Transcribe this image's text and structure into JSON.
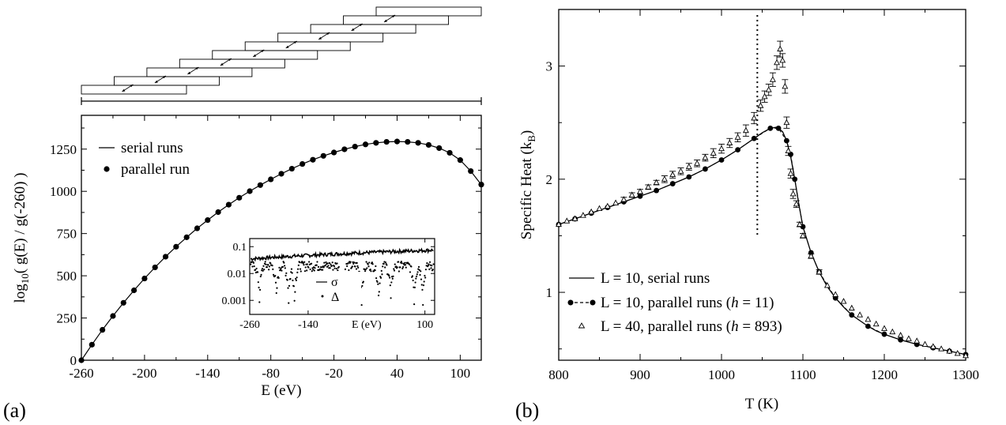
{
  "chart_data": [
    {
      "panel_label": "(a)",
      "type": "line",
      "xlabel": "E (eV)",
      "ylabel": "log10( g(E) / g(-260) )",
      "ylabel_parts": {
        "pre": "log",
        "sub": "10",
        "post": "( g(E) / g(-260) )"
      },
      "xlim": [
        -260,
        120
      ],
      "ylim": [
        0,
        1450
      ],
      "xticks": [
        -260,
        -200,
        -140,
        -80,
        -20,
        40,
        100
      ],
      "xtick_labels": [
        "-260",
        "-200",
        "-140",
        "-80",
        "-20",
        "40",
        "100"
      ],
      "yticks": [
        0,
        250,
        500,
        750,
        1000,
        1250
      ],
      "ytick_labels": [
        "0",
        "250",
        "500",
        "750",
        "1000",
        "1250"
      ],
      "legend_position": "top-left",
      "series": [
        {
          "name": "serial runs",
          "style": "solid line",
          "x": [
            -260,
            -250,
            -240,
            -230,
            -220,
            -210,
            -200,
            -190,
            -180,
            -170,
            -160,
            -150,
            -140,
            -130,
            -120,
            -110,
            -100,
            -90,
            -80,
            -70,
            -60,
            -50,
            -40,
            -30,
            -20,
            -10,
            0,
            10,
            20,
            30,
            40,
            50,
            60,
            70,
            80,
            90,
            100,
            110,
            120
          ],
          "y": [
            0,
            92,
            180,
            262,
            340,
            414,
            484,
            550,
            613,
            672,
            728,
            781,
            830,
            877,
            921,
            962,
            1001,
            1037,
            1071,
            1104,
            1134,
            1162,
            1187,
            1210,
            1230,
            1249,
            1265,
            1278,
            1287,
            1293,
            1295,
            1293,
            1287,
            1275,
            1256,
            1228,
            1185,
            1120,
            1040
          ]
        },
        {
          "name": "parallel run",
          "style": "filled circles",
          "x": [
            -260,
            -250,
            -240,
            -230,
            -220,
            -210,
            -200,
            -190,
            -180,
            -170,
            -160,
            -150,
            -140,
            -130,
            -120,
            -110,
            -100,
            -90,
            -80,
            -70,
            -60,
            -50,
            -40,
            -30,
            -20,
            -10,
            0,
            10,
            20,
            30,
            40,
            50,
            60,
            70,
            80,
            90,
            100,
            110,
            120
          ],
          "y": [
            0,
            92,
            180,
            262,
            340,
            414,
            484,
            550,
            613,
            672,
            728,
            781,
            830,
            877,
            921,
            962,
            1001,
            1037,
            1071,
            1104,
            1134,
            1162,
            1187,
            1210,
            1230,
            1249,
            1265,
            1278,
            1287,
            1293,
            1295,
            1293,
            1287,
            1275,
            1256,
            1228,
            1185,
            1120,
            1040
          ]
        }
      ],
      "window_diagram": {
        "window_count": 10,
        "description_of_marks": "overlapping energy windows with double-headed arrows in overlap regions"
      },
      "inset": {
        "type": "line",
        "xlabel": "E (eV)",
        "xticks": [
          -260,
          -140,
          100
        ],
        "xtick_labels": [
          "-260",
          "-140",
          "100"
        ],
        "yscale": "log",
        "yticks": [
          0.001,
          0.01,
          0.1
        ],
        "ytick_labels": [
          "0.001",
          "0.01",
          "0.1"
        ],
        "legend": [
          {
            "name": "σ",
            "style": "solid line"
          },
          {
            "name": "Δ",
            "style": "dots"
          }
        ]
      }
    },
    {
      "panel_label": "(b)",
      "type": "line",
      "xlabel": "T (K)",
      "ylabel": "Specific Heat (k",
      "ylabel_sub": "B",
      "ylabel_close": ")",
      "xlim": [
        800,
        1300
      ],
      "ylim": [
        0.4,
        3.5
      ],
      "xticks": [
        800,
        900,
        1000,
        1100,
        1200,
        1300
      ],
      "xtick_labels": [
        "800",
        "900",
        "1000",
        "1100",
        "1200",
        "1300"
      ],
      "yticks": [
        1,
        2,
        3
      ],
      "ytick_labels": [
        "1",
        "2",
        "3"
      ],
      "vertical_line_x": 1044,
      "legend_position": "bottom-left",
      "legend": [
        {
          "pre": "L = 10, serial runs",
          "h": "",
          "post": ""
        },
        {
          "pre": "L = 10, parallel runs (",
          "h": "h",
          "post": " = 11)"
        },
        {
          "pre": "L = 40, parallel runs (",
          "h": "h",
          "post": " = 893)"
        }
      ],
      "series": [
        {
          "name": "L = 10, serial runs",
          "style": "solid line",
          "x": [
            800,
            820,
            840,
            860,
            880,
            900,
            920,
            940,
            960,
            980,
            1000,
            1020,
            1040,
            1050,
            1060,
            1068,
            1075,
            1080,
            1085,
            1090,
            1095,
            1100,
            1110,
            1120,
            1130,
            1140,
            1150,
            1160,
            1170,
            1180,
            1190,
            1200,
            1220,
            1240,
            1260,
            1280,
            1300
          ],
          "y": [
            1.6,
            1.65,
            1.7,
            1.75,
            1.8,
            1.85,
            1.9,
            1.96,
            2.02,
            2.09,
            2.17,
            2.26,
            2.36,
            2.41,
            2.45,
            2.46,
            2.42,
            2.34,
            2.2,
            2.0,
            1.78,
            1.58,
            1.35,
            1.18,
            1.05,
            0.95,
            0.87,
            0.8,
            0.75,
            0.7,
            0.66,
            0.63,
            0.58,
            0.54,
            0.51,
            0.48,
            0.45
          ]
        },
        {
          "name": "L = 10, parallel runs (h = 11)",
          "style": "filled circles, dashed line",
          "x": [
            800,
            820,
            840,
            860,
            880,
            900,
            920,
            940,
            960,
            980,
            1000,
            1020,
            1040,
            1060,
            1070,
            1080,
            1085,
            1090,
            1100,
            1110,
            1120,
            1140,
            1160,
            1180,
            1200,
            1220,
            1240,
            1260,
            1280,
            1300
          ],
          "y": [
            1.6,
            1.65,
            1.7,
            1.75,
            1.8,
            1.85,
            1.9,
            1.96,
            2.02,
            2.09,
            2.17,
            2.26,
            2.36,
            2.45,
            2.45,
            2.34,
            2.22,
            2.0,
            1.58,
            1.35,
            1.18,
            0.95,
            0.8,
            0.7,
            0.63,
            0.58,
            0.54,
            0.51,
            0.48,
            0.45
          ]
        },
        {
          "name": "L = 40, parallel runs (h = 893)",
          "style": "open triangles with error bars",
          "x": [
            800,
            810,
            820,
            830,
            840,
            850,
            860,
            870,
            880,
            890,
            900,
            910,
            920,
            930,
            940,
            950,
            960,
            970,
            980,
            990,
            1000,
            1010,
            1020,
            1030,
            1040,
            1048,
            1053,
            1058,
            1063,
            1068,
            1072,
            1075,
            1078,
            1080,
            1082,
            1085,
            1088,
            1092,
            1096,
            1100,
            1110,
            1120,
            1130,
            1140,
            1150,
            1160,
            1170,
            1180,
            1190,
            1200,
            1210,
            1220,
            1230,
            1240,
            1250,
            1260,
            1270,
            1280,
            1290,
            1300
          ],
          "y": [
            1.6,
            1.63,
            1.65,
            1.68,
            1.71,
            1.74,
            1.76,
            1.79,
            1.82,
            1.86,
            1.89,
            1.93,
            1.97,
            2.0,
            2.04,
            2.07,
            2.11,
            2.14,
            2.19,
            2.23,
            2.27,
            2.32,
            2.37,
            2.43,
            2.54,
            2.65,
            2.73,
            2.79,
            2.88,
            3.03,
            3.15,
            3.05,
            2.82,
            2.5,
            2.25,
            2.05,
            1.87,
            1.78,
            1.6,
            1.5,
            1.32,
            1.18,
            1.06,
            0.98,
            0.92,
            0.86,
            0.8,
            0.76,
            0.72,
            0.68,
            0.65,
            0.62,
            0.59,
            0.57,
            0.54,
            0.52,
            0.5,
            0.48,
            0.46,
            0.44
          ],
          "err": [
            0.01,
            0.01,
            0.01,
            0.01,
            0.01,
            0.01,
            0.01,
            0.01,
            0.02,
            0.02,
            0.02,
            0.02,
            0.02,
            0.03,
            0.03,
            0.03,
            0.03,
            0.03,
            0.03,
            0.04,
            0.04,
            0.04,
            0.04,
            0.05,
            0.05,
            0.05,
            0.05,
            0.05,
            0.06,
            0.06,
            0.07,
            0.06,
            0.06,
            0.05,
            0.04,
            0.04,
            0.04,
            0.03,
            0.02,
            0.02,
            0.02,
            0.02,
            0.01,
            0.01,
            0.01,
            0.01,
            0.01,
            0.01,
            0.01,
            0.01,
            0.01,
            0.01,
            0.01,
            0.01,
            0.01,
            0.01,
            0.01,
            0.01,
            0.01,
            0.01
          ]
        }
      ]
    }
  ]
}
